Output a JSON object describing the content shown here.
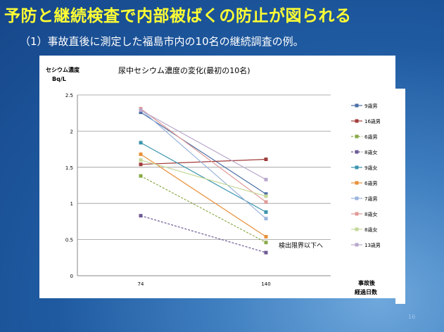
{
  "slide": {
    "title": "予防と継続検査で内部被ばくの防止が図られる",
    "subtitle": "（1）事故直後に測定した福島市内の10名の継続調査の例。",
    "page_number": "16"
  },
  "chart_data": {
    "type": "line",
    "title": "尿中セシウム濃度の変化(最初の10名)",
    "ylabel_line1": "セシウム濃度",
    "ylabel_line2": "Bq/L",
    "xlabel_line1": "事故後",
    "xlabel_line2": "経過日数",
    "x": [
      74,
      140
    ],
    "x_tick_labels": [
      "74",
      "140"
    ],
    "ylim": [
      0,
      2.5
    ],
    "y_ticks": [
      0,
      0.5,
      1,
      1.5,
      2,
      2.5
    ],
    "y_tick_labels": [
      "0",
      "0.5",
      "1",
      "1.5",
      "2",
      "2.5"
    ],
    "grid": true,
    "legend_position": "right",
    "annotation": "検出限界以下へ",
    "series": [
      {
        "name": "9歳男",
        "values": [
          2.26,
          1.13
        ],
        "color": "#4a6fa5",
        "dashed": false,
        "marker": "square"
      },
      {
        "name": "16歳男",
        "values": [
          1.54,
          1.61
        ],
        "color": "#a03c3a",
        "dashed": false,
        "marker": "square"
      },
      {
        "name": "6歳男",
        "values": [
          1.38,
          0.46
        ],
        "color": "#8aaa48",
        "dashed": true,
        "marker": "square"
      },
      {
        "name": "8歳女",
        "values": [
          0.83,
          0.32
        ],
        "color": "#6e5a95",
        "dashed": true,
        "marker": "square"
      },
      {
        "name": "9歳女",
        "values": [
          1.84,
          0.88
        ],
        "color": "#3a94ae",
        "dashed": false,
        "marker": "square"
      },
      {
        "name": "6歳男",
        "values": [
          1.68,
          0.54
        ],
        "color": "#e8903a",
        "dashed": false,
        "marker": "square"
      },
      {
        "name": "7歳男",
        "values": [
          2.3,
          0.79
        ],
        "color": "#9ab4dc",
        "dashed": false,
        "marker": "square"
      },
      {
        "name": "8歳女",
        "values": [
          2.31,
          1.02
        ],
        "color": "#e09a98",
        "dashed": false,
        "marker": "square"
      },
      {
        "name": "8歳女",
        "values": [
          1.6,
          1.1
        ],
        "color": "#c4d898",
        "dashed": false,
        "marker": "square"
      },
      {
        "name": "13歳男",
        "values": [
          2.29,
          1.33
        ],
        "color": "#b8a8cc",
        "dashed": false,
        "marker": "square"
      }
    ]
  }
}
